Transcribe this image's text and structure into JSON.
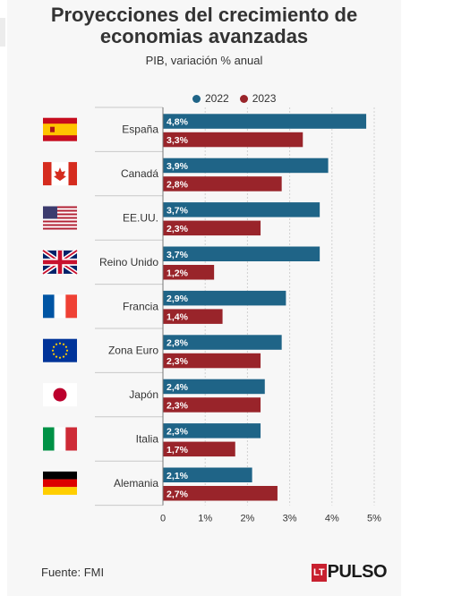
{
  "title_line1": "Proyecciones del crecimiento de",
  "title_line2": "economias avanzadas",
  "subtitle": "PIB, variación % anual",
  "source": "Fuente: FMI",
  "logo": {
    "lt": "LT",
    "name": "PULSO"
  },
  "colors": {
    "2022": "#1f6487",
    "2023": "#99242a",
    "grid": "#d0d0d0"
  },
  "chart_data": {
    "type": "bar",
    "orientation": "horizontal",
    "title": "Proyecciones del crecimiento de economias avanzadas",
    "subtitle": "PIB, variación % anual",
    "categories": [
      "España",
      "Canadá",
      "EE.UU.",
      "Reino Unido",
      "Francia",
      "Zona Euro",
      "Japón",
      "Italia",
      "Alemania"
    ],
    "flags": [
      "spain-flag-icon",
      "canada-flag-icon",
      "usa-flag-icon",
      "uk-flag-icon",
      "france-flag-icon",
      "eu-flag-icon",
      "japan-flag-icon",
      "italy-flag-icon",
      "germany-flag-icon"
    ],
    "series": [
      {
        "name": "2022",
        "values": [
          4.8,
          3.9,
          3.7,
          3.7,
          2.9,
          2.8,
          2.4,
          2.3,
          2.1
        ],
        "labels": [
          "4,8%",
          "3,9%",
          "3,7%",
          "3,7%",
          "2,9%",
          "2,8%",
          "2,4%",
          "2,3%",
          "2,1%"
        ]
      },
      {
        "name": "2023",
        "values": [
          3.3,
          2.8,
          2.3,
          1.2,
          1.4,
          2.3,
          2.3,
          1.7,
          2.7
        ],
        "labels": [
          "3,3%",
          "2,8%",
          "2,3%",
          "1,2%",
          "1,4%",
          "2,3%",
          "2,3%",
          "1,7%",
          "2,7%"
        ]
      }
    ],
    "xlim": [
      0,
      5
    ],
    "xticks": [
      0,
      1,
      2,
      3,
      4,
      5
    ],
    "xtick_labels": [
      "0",
      "1%",
      "2%",
      "3%",
      "4%",
      "5%"
    ],
    "grid": true,
    "legend": "top-center"
  }
}
